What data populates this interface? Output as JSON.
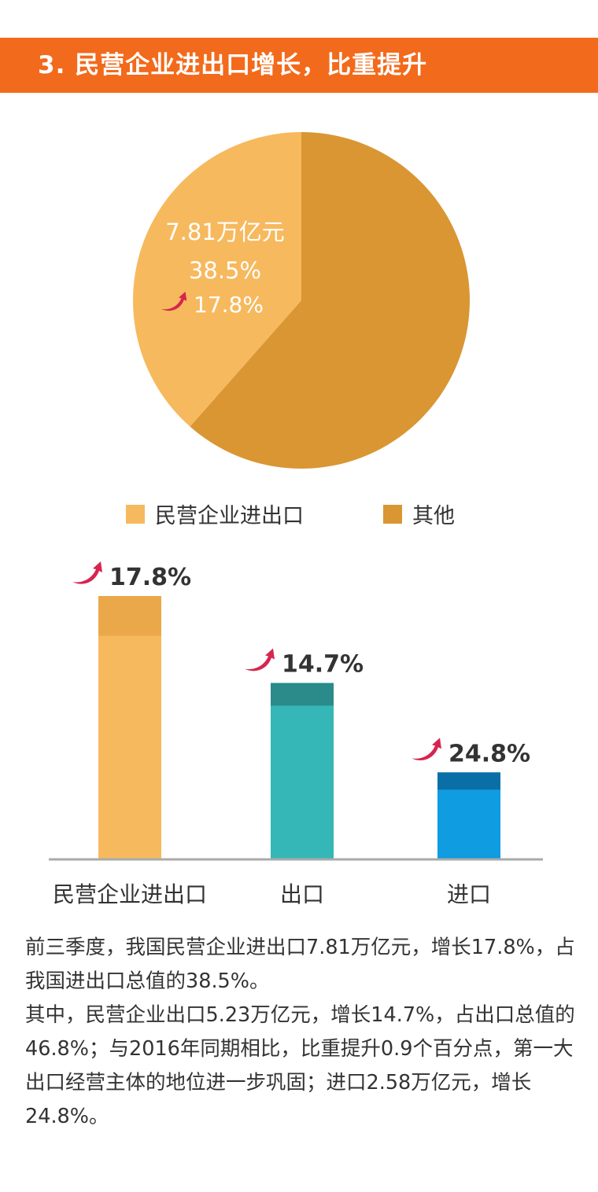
{
  "header": {
    "title": "3. 民营企业进出口增长，比重提升"
  },
  "colors": {
    "header_bg": "#f26a1b",
    "private": "#f7b95e",
    "other": "#d99633",
    "arrow": "#d6254f",
    "bar_private": "#f7b95e",
    "bar_private_top": "#eba84a",
    "bar_export": "#35b7b7",
    "bar_export_top": "#2b8a8a",
    "bar_import": "#0f9ce0",
    "bar_import_top": "#0a6fa6"
  },
  "chart_data": [
    {
      "type": "pie",
      "slices": [
        {
          "label": "民营企业进出口",
          "value": 38.5,
          "color": "#f7b95e"
        },
        {
          "label": "其他",
          "value": 61.5,
          "color": "#d99633"
        }
      ],
      "annotation": {
        "amount": "7.81万亿元",
        "share": "38.5%",
        "growth": "17.8%"
      },
      "legend": [
        "民营企业进出口",
        "其他"
      ]
    },
    {
      "type": "bar",
      "categories": [
        "民营企业进出口",
        "出口",
        "进口"
      ],
      "values": [
        7.81,
        5.23,
        2.58
      ],
      "growth_labels": [
        "17.8%",
        "14.7%",
        "24.8%"
      ],
      "growth": [
        17.8,
        14.7,
        24.8
      ],
      "unit": "万亿元",
      "ylim": [
        0,
        7.81
      ]
    }
  ],
  "paragraphs": [
    "前三季度，我国民营企业进出口7.81万亿元，增长17.8%，占我国进出口总值的38.5%。",
    "其中，民营企业出口5.23万亿元，增长14.7%，占出口总值的46.8%；与2016年同期相比，比重提升0.9个百分点，第一大出口经营主体的地位进一步巩固；进口2.58万亿元，增长24.8%。"
  ]
}
